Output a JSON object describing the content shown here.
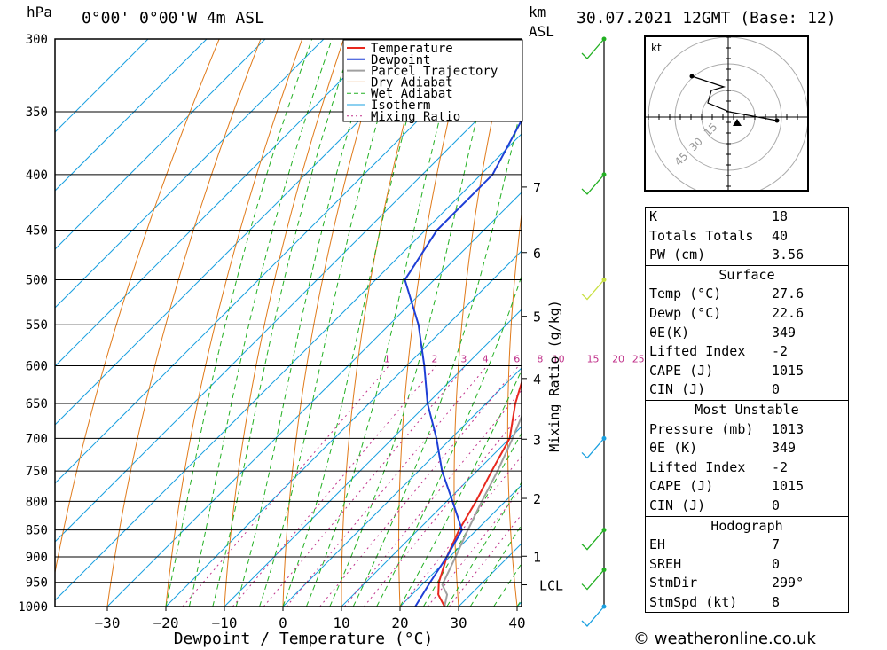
{
  "header": {
    "location": "0°00' 0°00'W 4m ASL",
    "datetime": "30.07.2021 12GMT (Base: 12)",
    "pressure_unit": "hPa",
    "height_unit": "km",
    "height_unit2": "ASL"
  },
  "chart_data": {
    "type": "skew-t",
    "xlabel": "Dewpoint / Temperature (°C)",
    "ylabel_right": "Mixing Ratio (g/kg)",
    "pressure_levels": [
      300,
      350,
      400,
      450,
      500,
      550,
      600,
      650,
      700,
      750,
      800,
      850,
      900,
      950,
      1000
    ],
    "temperature_ticks": [
      -30,
      -20,
      -10,
      0,
      10,
      20,
      30,
      40
    ],
    "height_ticks_km": [
      1,
      2,
      3,
      4,
      5,
      6,
      7
    ],
    "lcl_label": "LCL",
    "lcl_pressure": 955,
    "mixing_ratio_labels": [
      1,
      2,
      3,
      4,
      6,
      8,
      10,
      15,
      20,
      25
    ],
    "legend": [
      "Temperature",
      "Dewpoint",
      "Parcel Trajectory",
      "Dry Adiabat",
      "Wet Adiabat",
      "Isotherm",
      "Mixing Ratio"
    ],
    "colors": {
      "temperature": "#e8281e",
      "dewpoint": "#1f3fd6",
      "parcel": "#a0a0a0",
      "dry_adiabat": "#e07a1a",
      "wet_adiabat": "#22b022",
      "isotherm": "#1aa0e0",
      "mixing_ratio": "#c0308a"
    },
    "temperature": [
      [
        1000,
        27.6
      ],
      [
        975,
        24.5
      ],
      [
        950,
        22.5
      ],
      [
        900,
        19.5
      ],
      [
        850,
        17
      ],
      [
        800,
        15
      ],
      [
        750,
        12.5
      ],
      [
        700,
        10
      ],
      [
        650,
        5
      ],
      [
        600,
        0.5
      ],
      [
        550,
        -4
      ],
      [
        500,
        -10
      ],
      [
        450,
        -16
      ],
      [
        400,
        -22.5
      ],
      [
        350,
        -34
      ],
      [
        300,
        -46
      ]
    ],
    "dewpoint": [
      [
        1000,
        22.6
      ],
      [
        950,
        21
      ],
      [
        900,
        19.5
      ],
      [
        850,
        17.5
      ],
      [
        800,
        11
      ],
      [
        750,
        4
      ],
      [
        700,
        -2.5
      ],
      [
        650,
        -10
      ],
      [
        600,
        -17
      ],
      [
        550,
        -25
      ],
      [
        500,
        -35
      ],
      [
        450,
        -38
      ],
      [
        400,
        -38
      ],
      [
        350,
        -43
      ],
      [
        300,
        -54
      ]
    ],
    "parcel": [
      [
        1000,
        27.6
      ],
      [
        975,
        26
      ],
      [
        955,
        23.5
      ],
      [
        900,
        21
      ],
      [
        850,
        18.5
      ],
      [
        800,
        16
      ],
      [
        750,
        13.5
      ],
      [
        700,
        10.5
      ],
      [
        650,
        7
      ],
      [
        600,
        3
      ],
      [
        550,
        -1.5
      ],
      [
        500,
        -7
      ],
      [
        450,
        -13
      ],
      [
        400,
        -20.5
      ],
      [
        350,
        -30
      ]
    ],
    "wind_barbs_pressure": [
      300,
      400,
      500,
      700,
      850,
      925,
      1000
    ]
  },
  "hodograph": {
    "unit_label": "kt",
    "rings": [
      "15",
      "30",
      "45"
    ]
  },
  "indices": {
    "rows": [
      [
        "K",
        "18"
      ],
      [
        "Totals Totals",
        "40"
      ],
      [
        "PW (cm)",
        "3.56"
      ]
    ]
  },
  "surface": {
    "title": "Surface",
    "rows": [
      [
        "Temp (°C)",
        "27.6"
      ],
      [
        "Dewp (°C)",
        "22.6"
      ],
      [
        "θE(K)",
        "349"
      ],
      [
        "Lifted Index",
        "-2"
      ],
      [
        "CAPE (J)",
        "1015"
      ],
      [
        "CIN (J)",
        "0"
      ]
    ]
  },
  "most_unstable": {
    "title": "Most Unstable",
    "rows": [
      [
        "Pressure (mb)",
        "1013"
      ],
      [
        "θE (K)",
        "349"
      ],
      [
        "Lifted Index",
        "-2"
      ],
      [
        "CAPE (J)",
        "1015"
      ],
      [
        "CIN (J)",
        "0"
      ]
    ]
  },
  "hodograph_table": {
    "title": "Hodograph",
    "rows": [
      [
        "EH",
        "7"
      ],
      [
        "SREH",
        "0"
      ],
      [
        "StmDir",
        "299°"
      ],
      [
        "StmSpd (kt)",
        "8"
      ]
    ]
  },
  "credit": "© weatheronline.co.uk"
}
